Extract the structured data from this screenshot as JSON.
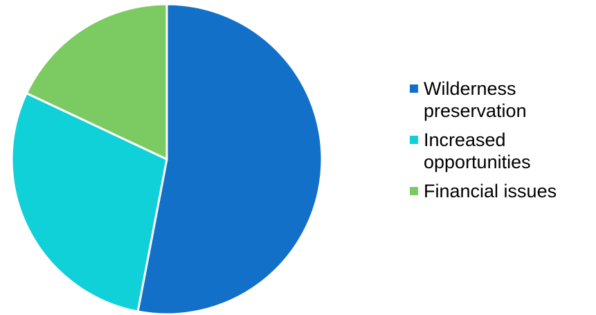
{
  "chart_data": {
    "type": "pie",
    "title": "",
    "categories": [
      "Wilderness preservation",
      "Increased opportunities",
      "Financial issues"
    ],
    "values": [
      53,
      29,
      18
    ],
    "colors": [
      "#1370C8",
      "#10D0D8",
      "#7CCB62"
    ],
    "legend": "right",
    "legend_entries": [
      {
        "label": "Wilderness\npreservation",
        "color": "#1370C8"
      },
      {
        "label": "Increased\nopportunities",
        "color": "#10D0D8"
      },
      {
        "label": "Financial issues",
        "color": "#7CCB62"
      }
    ]
  }
}
